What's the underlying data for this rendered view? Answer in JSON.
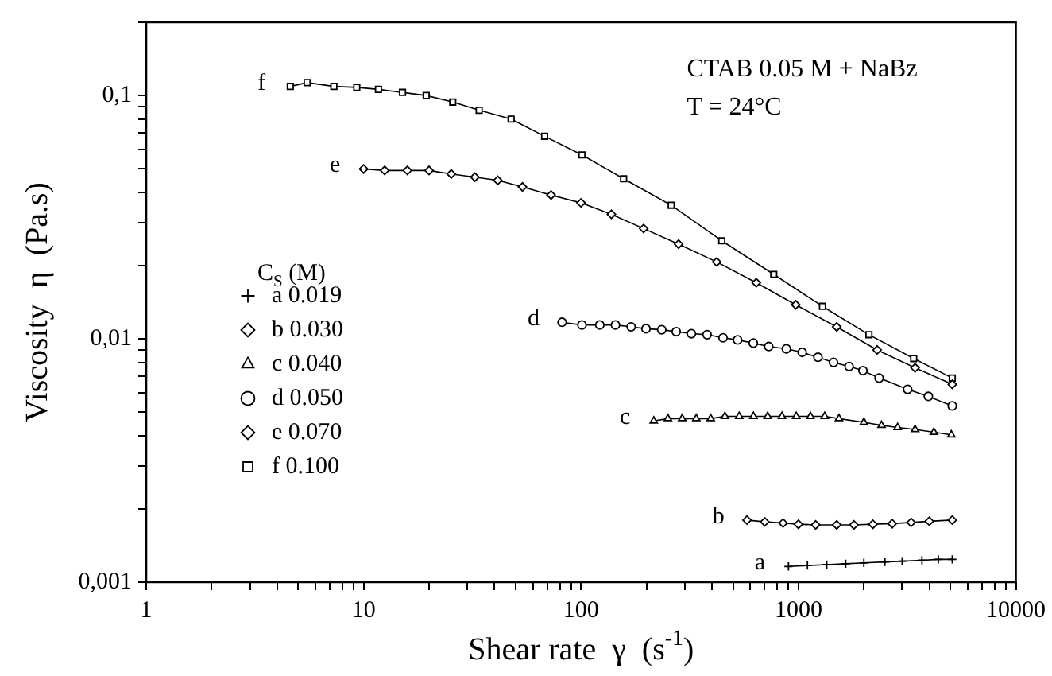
{
  "chart_data": {
    "type": "line",
    "xlabel": "Shear rate  γ  (s$^{-1}$)",
    "ylabel": "Viscosity  η  (Pa.s)",
    "legend_title": "C$_{S}$ (M)",
    "log": "xy",
    "xlim": [
      1,
      10000
    ],
    "ylim": [
      0.001,
      0.2
    ],
    "xticks": [
      1,
      {
        "value": 2,
        "label": null
      },
      {
        "value": 3,
        "label": null
      },
      {
        "value": 4,
        "label": null
      },
      {
        "value": 5,
        "label": null
      },
      {
        "value": 6,
        "label": null
      },
      {
        "value": 7,
        "label": null
      },
      {
        "value": 8,
        "label": null
      },
      {
        "value": 9,
        "label": null
      },
      10,
      {
        "value": 20,
        "label": null
      },
      {
        "value": 30,
        "label": null
      },
      {
        "value": 40,
        "label": null
      },
      {
        "value": 50,
        "label": null
      },
      {
        "value": 60,
        "label": null
      },
      {
        "value": 70,
        "label": null
      },
      {
        "value": 80,
        "label": null
      },
      {
        "value": 90,
        "label": null
      },
      100,
      {
        "value": 200,
        "label": null
      },
      {
        "value": 300,
        "label": null
      },
      {
        "value": 400,
        "label": null
      },
      {
        "value": 500,
        "label": null
      },
      {
        "value": 600,
        "label": null
      },
      {
        "value": 700,
        "label": null
      },
      {
        "value": 800,
        "label": null
      },
      {
        "value": 900,
        "label": null
      },
      1000,
      {
        "value": 2000,
        "label": null
      },
      {
        "value": 3000,
        "label": null
      },
      {
        "value": 4000,
        "label": null
      },
      {
        "value": 5000,
        "label": null
      },
      {
        "value": 6000,
        "label": null
      },
      {
        "value": 7000,
        "label": null
      },
      {
        "value": 8000,
        "label": null
      },
      {
        "value": 9000,
        "label": null
      },
      10000
    ],
    "yticks": [
      {
        "value": 0.001,
        "label": "0,001"
      },
      {
        "value": 0.002,
        "label": null
      },
      {
        "value": 0.003,
        "label": null
      },
      {
        "value": 0.004,
        "label": null
      },
      {
        "value": 0.005,
        "label": null
      },
      {
        "value": 0.006,
        "label": null
      },
      {
        "value": 0.007,
        "label": null
      },
      {
        "value": 0.008,
        "label": null
      },
      {
        "value": 0.009,
        "label": null
      },
      {
        "value": 0.01,
        "label": "0,01"
      },
      {
        "value": 0.02,
        "label": null
      },
      {
        "value": 0.03,
        "label": null
      },
      {
        "value": 0.04,
        "label": null
      },
      {
        "value": 0.05,
        "label": null
      },
      {
        "value": 0.06,
        "label": null
      },
      {
        "value": 0.07,
        "label": null
      },
      {
        "value": 0.08,
        "label": null
      },
      {
        "value": 0.09,
        "label": null
      },
      {
        "value": 0.1,
        "label": "0,1"
      },
      {
        "value": 0.2,
        "label": null
      }
    ],
    "grid": false,
    "legend": "left",
    "line_style": "solid",
    "annotations": [
      "CTAB 0.05 M + NaBz",
      "T = 24°C",
      {
        "text": "a",
        "x": 900,
        "y": 0.00116
      },
      {
        "text": "b",
        "x": 580,
        "y": 0.0018
      },
      {
        "text": "c",
        "x": 216,
        "y": 0.0046
      },
      {
        "text": "d",
        "x": 81.8,
        "y": 0.0117
      },
      {
        "text": "e",
        "x": 10,
        "y": 0.0499
      },
      {
        "text": "f",
        "x": 4.6,
        "y": 0.109
      }
    ],
    "series": [
      {
        "name": "a 0.019",
        "color": "#000000",
        "marker": "cross",
        "x": [
          900,
          1100,
          1350,
          1650,
          2000,
          2500,
          3000,
          3700,
          4400,
          5100
        ],
        "values": [
          0.00116,
          0.00117,
          0.00118,
          0.00119,
          0.0012,
          0.00121,
          0.00122,
          0.00123,
          0.00124,
          0.00124
        ]
      },
      {
        "name": "b 0.030",
        "color": "#000000",
        "marker": "diamond",
        "x": [
          580,
          700,
          850,
          1000,
          1200,
          1500,
          1800,
          2200,
          2700,
          3300,
          4000,
          5100
        ],
        "values": [
          0.0018,
          0.00177,
          0.00175,
          0.00173,
          0.00172,
          0.00172,
          0.00172,
          0.00173,
          0.00174,
          0.00176,
          0.00178,
          0.0018
        ]
      },
      {
        "name": "c 0.040",
        "color": "#000000",
        "marker": "triangle",
        "x": [
          216,
          251,
          292,
          339,
          395,
          459,
          534,
          621,
          722,
          840,
          977,
          1136,
          1321,
          1537,
          2000,
          2410,
          2860,
          3440,
          4200,
          5050
        ],
        "values": [
          0.0046,
          0.0047,
          0.0047,
          0.0047,
          0.0047,
          0.0048,
          0.0048,
          0.0048,
          0.0048,
          0.0048,
          0.0048,
          0.0048,
          0.0048,
          0.0047,
          0.00454,
          0.00441,
          0.00432,
          0.00424,
          0.00413,
          0.00403
        ]
      },
      {
        "name": "d 0.050",
        "color": "#000000",
        "marker": "circle",
        "x": [
          81.8,
          101,
          122,
          144,
          170,
          199,
          235,
          274,
          322,
          380,
          450,
          525,
          620,
          730,
          880,
          1040,
          1230,
          1450,
          1710,
          1980,
          2350,
          3180,
          3960,
          5100
        ],
        "values": [
          0.0117,
          0.0114,
          0.0114,
          0.0114,
          0.0112,
          0.011,
          0.0109,
          0.0107,
          0.0105,
          0.0104,
          0.0101,
          0.0099,
          0.0096,
          0.0093,
          0.0091,
          0.0088,
          0.0084,
          0.008,
          0.0077,
          0.0074,
          0.0069,
          0.0062,
          0.0058,
          0.0053
        ]
      },
      {
        "name": "e 0.070",
        "color": "#000000",
        "marker": "diamond",
        "x": [
          10,
          12.5,
          15.9,
          20,
          25.3,
          32.5,
          41.4,
          53.8,
          72.8,
          100,
          138,
          194,
          281,
          421,
          640,
          972,
          1500,
          2300,
          3440,
          5100
        ],
        "values": [
          0.0499,
          0.0492,
          0.0492,
          0.0492,
          0.0476,
          0.0462,
          0.0448,
          0.0421,
          0.039,
          0.0362,
          0.0325,
          0.0284,
          0.0245,
          0.0207,
          0.017,
          0.0138,
          0.0112,
          0.009,
          0.0076,
          0.0065
        ]
      },
      {
        "name": "f 0.100",
        "color": "#000000",
        "marker": "square",
        "x": [
          4.6,
          5.5,
          7.3,
          9.3,
          11.7,
          15.1,
          19.4,
          25.7,
          34,
          47.7,
          68,
          101,
          157,
          260,
          444,
          770,
          1290,
          2110,
          3390,
          5100
        ],
        "values": [
          0.109,
          0.113,
          0.109,
          0.108,
          0.106,
          0.103,
          0.1,
          0.094,
          0.087,
          0.08,
          0.068,
          0.057,
          0.0455,
          0.0354,
          0.0253,
          0.0184,
          0.0136,
          0.0104,
          0.0083,
          0.0069
        ]
      }
    ]
  }
}
